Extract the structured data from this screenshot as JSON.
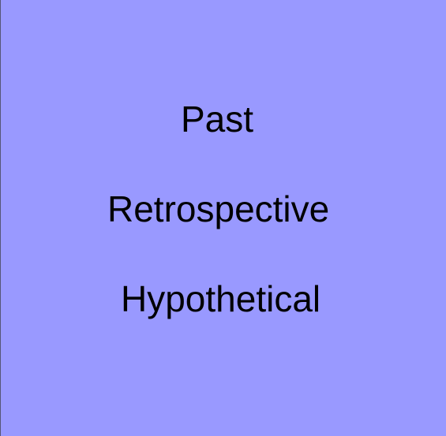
{
  "background_color": "#9999ff",
  "text_color": "#000000",
  "terms": [
    {
      "label": "Past"
    },
    {
      "label": "Retrospective"
    },
    {
      "label": "Hypothetical"
    }
  ]
}
